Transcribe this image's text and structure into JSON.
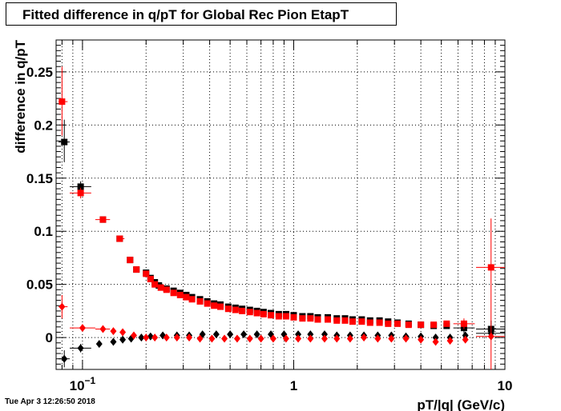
{
  "title": "Fitted difference in q/pT for Global Rec Pion EtapT",
  "timestamp": "Tue Apr  3 12:26:50 2018",
  "colors": {
    "series_black": "#000000",
    "series_red": "#ff0000",
    "grid": "#000000"
  },
  "chart_data": {
    "type": "scatter",
    "title": "Fitted difference in q/pT for Global Rec Pion EtapT",
    "xlabel": "pT/|q| (GeV/c)",
    "ylabel": "difference in q/pT",
    "x_scale": "log",
    "xlim": [
      0.075,
      10
    ],
    "ylim": [
      -0.03,
      0.28
    ],
    "grid": true,
    "x_ticks": [
      {
        "value": 0.1,
        "label": "10",
        "sup": "−1"
      },
      {
        "value": 1,
        "label": "1",
        "sup": ""
      },
      {
        "value": 10,
        "label": "10",
        "sup": ""
      }
    ],
    "y_ticks": [
      {
        "value": 0,
        "label": "0"
      },
      {
        "value": 0.05,
        "label": "0.05"
      },
      {
        "value": 0.1,
        "label": "0.1"
      },
      {
        "value": 0.15,
        "label": "0.15"
      },
      {
        "value": 0.2,
        "label": "0.2"
      },
      {
        "value": 0.25,
        "label": "0.25"
      }
    ],
    "series": [
      {
        "marker": "square",
        "color": "#000000",
        "points": [
          {
            "x": 0.082,
            "y": 0.184,
            "xlo": 0.077,
            "xhi": 0.087,
            "ylo": 0.165,
            "yhi": 0.205
          },
          {
            "x": 0.098,
            "y": 0.142,
            "xlo": 0.087,
            "xhi": 0.11,
            "ylo": 0.137,
            "yhi": 0.147
          },
          {
            "x": 0.125,
            "y": 0.111
          },
          {
            "x": 0.15,
            "y": 0.093
          },
          {
            "x": 0.168,
            "y": 0.073
          },
          {
            "x": 0.18,
            "y": 0.064
          },
          {
            "x": 0.2,
            "y": 0.061
          },
          {
            "x": 0.21,
            "y": 0.056
          },
          {
            "x": 0.22,
            "y": 0.052
          },
          {
            "x": 0.23,
            "y": 0.049
          },
          {
            "x": 0.25,
            "y": 0.046
          },
          {
            "x": 0.27,
            "y": 0.044
          },
          {
            "x": 0.29,
            "y": 0.042
          },
          {
            "x": 0.31,
            "y": 0.04
          },
          {
            "x": 0.33,
            "y": 0.038
          },
          {
            "x": 0.36,
            "y": 0.036
          },
          {
            "x": 0.39,
            "y": 0.034
          },
          {
            "x": 0.42,
            "y": 0.032
          },
          {
            "x": 0.45,
            "y": 0.031
          },
          {
            "x": 0.49,
            "y": 0.029
          },
          {
            "x": 0.53,
            "y": 0.028
          },
          {
            "x": 0.57,
            "y": 0.027
          },
          {
            "x": 0.62,
            "y": 0.026
          },
          {
            "x": 0.67,
            "y": 0.025
          },
          {
            "x": 0.72,
            "y": 0.024
          },
          {
            "x": 0.78,
            "y": 0.023
          },
          {
            "x": 0.85,
            "y": 0.022
          },
          {
            "x": 0.92,
            "y": 0.022
          },
          {
            "x": 1.0,
            "y": 0.021
          },
          {
            "x": 1.1,
            "y": 0.02
          },
          {
            "x": 1.2,
            "y": 0.02
          },
          {
            "x": 1.3,
            "y": 0.019
          },
          {
            "x": 1.45,
            "y": 0.019
          },
          {
            "x": 1.6,
            "y": 0.018
          },
          {
            "x": 1.75,
            "y": 0.018
          },
          {
            "x": 1.9,
            "y": 0.017
          },
          {
            "x": 2.1,
            "y": 0.017
          },
          {
            "x": 2.3,
            "y": 0.016
          },
          {
            "x": 2.55,
            "y": 0.016
          },
          {
            "x": 2.8,
            "y": 0.015
          },
          {
            "x": 3.1,
            "y": 0.014
          },
          {
            "x": 3.5,
            "y": 0.013
          },
          {
            "x": 4.0,
            "y": 0.012
          },
          {
            "x": 4.6,
            "y": 0.011
          },
          {
            "x": 5.3,
            "y": 0.011
          },
          {
            "x": 6.4,
            "y": 0.009,
            "xlo": 5.7,
            "xhi": 7.2,
            "ylo": 0.004,
            "yhi": 0.014
          },
          {
            "x": 8.6,
            "y": 0.008,
            "xlo": 7.3,
            "xhi": 10.0,
            "ylo": 0.0,
            "yhi": 0.016
          }
        ]
      },
      {
        "marker": "diamond",
        "color": "#000000",
        "points": [
          {
            "x": 0.082,
            "y": -0.02,
            "xlo": 0.077,
            "xhi": 0.087,
            "ylo": -0.028,
            "yhi": -0.012
          },
          {
            "x": 0.098,
            "y": -0.01,
            "xlo": 0.087,
            "xhi": 0.11,
            "ylo": -0.014,
            "yhi": -0.006
          },
          {
            "x": 0.12,
            "y": -0.006
          },
          {
            "x": 0.14,
            "y": -0.004
          },
          {
            "x": 0.155,
            "y": -0.002
          },
          {
            "x": 0.17,
            "y": -0.001
          },
          {
            "x": 0.19,
            "y": 0.0
          },
          {
            "x": 0.21,
            "y": 0.001
          },
          {
            "x": 0.24,
            "y": 0.002
          },
          {
            "x": 0.28,
            "y": 0.002
          },
          {
            "x": 0.32,
            "y": 0.002
          },
          {
            "x": 0.37,
            "y": 0.003
          },
          {
            "x": 0.43,
            "y": 0.003
          },
          {
            "x": 0.5,
            "y": 0.003
          },
          {
            "x": 0.58,
            "y": 0.003
          },
          {
            "x": 0.67,
            "y": 0.003
          },
          {
            "x": 0.78,
            "y": 0.003
          },
          {
            "x": 0.9,
            "y": 0.003
          },
          {
            "x": 1.05,
            "y": 0.003
          },
          {
            "x": 1.2,
            "y": 0.003
          },
          {
            "x": 1.4,
            "y": 0.003
          },
          {
            "x": 1.6,
            "y": 0.002
          },
          {
            "x": 1.85,
            "y": 0.002
          },
          {
            "x": 2.15,
            "y": 0.002
          },
          {
            "x": 2.5,
            "y": 0.002
          },
          {
            "x": 2.9,
            "y": 0.002
          },
          {
            "x": 3.4,
            "y": 0.001
          },
          {
            "x": 4.0,
            "y": 0.001
          },
          {
            "x": 4.7,
            "y": 0.0
          },
          {
            "x": 5.5,
            "y": 0.0
          },
          {
            "x": 6.5,
            "y": 0.002
          },
          {
            "x": 8.6,
            "y": 0.004,
            "xlo": 7.3,
            "xhi": 10.0
          }
        ]
      },
      {
        "marker": "square",
        "color": "#ff0000",
        "points": [
          {
            "x": 0.08,
            "y": 0.222,
            "xlo": 0.077,
            "xhi": 0.085,
            "ylo": 0.19,
            "yhi": 0.255
          },
          {
            "x": 0.098,
            "y": 0.136,
            "xlo": 0.087,
            "xhi": 0.11,
            "ylo": 0.131,
            "yhi": 0.141
          },
          {
            "x": 0.125,
            "y": 0.111,
            "xlo": 0.115,
            "xhi": 0.135
          },
          {
            "x": 0.15,
            "y": 0.093,
            "xlo": 0.145,
            "xhi": 0.158
          },
          {
            "x": 0.168,
            "y": 0.073
          },
          {
            "x": 0.18,
            "y": 0.064
          },
          {
            "x": 0.2,
            "y": 0.06
          },
          {
            "x": 0.21,
            "y": 0.055
          },
          {
            "x": 0.22,
            "y": 0.05
          },
          {
            "x": 0.235,
            "y": 0.047
          },
          {
            "x": 0.25,
            "y": 0.045
          },
          {
            "x": 0.27,
            "y": 0.042
          },
          {
            "x": 0.29,
            "y": 0.04
          },
          {
            "x": 0.31,
            "y": 0.038
          },
          {
            "x": 0.33,
            "y": 0.036
          },
          {
            "x": 0.36,
            "y": 0.034
          },
          {
            "x": 0.39,
            "y": 0.032
          },
          {
            "x": 0.42,
            "y": 0.03
          },
          {
            "x": 0.45,
            "y": 0.029
          },
          {
            "x": 0.49,
            "y": 0.027
          },
          {
            "x": 0.53,
            "y": 0.026
          },
          {
            "x": 0.57,
            "y": 0.025
          },
          {
            "x": 0.62,
            "y": 0.024
          },
          {
            "x": 0.67,
            "y": 0.023
          },
          {
            "x": 0.72,
            "y": 0.022
          },
          {
            "x": 0.78,
            "y": 0.021
          },
          {
            "x": 0.85,
            "y": 0.02
          },
          {
            "x": 0.92,
            "y": 0.02
          },
          {
            "x": 1.0,
            "y": 0.019
          },
          {
            "x": 1.1,
            "y": 0.018
          },
          {
            "x": 1.2,
            "y": 0.018
          },
          {
            "x": 1.3,
            "y": 0.017
          },
          {
            "x": 1.45,
            "y": 0.017
          },
          {
            "x": 1.6,
            "y": 0.016
          },
          {
            "x": 1.75,
            "y": 0.016
          },
          {
            "x": 1.9,
            "y": 0.015
          },
          {
            "x": 2.1,
            "y": 0.015
          },
          {
            "x": 2.3,
            "y": 0.014
          },
          {
            "x": 2.55,
            "y": 0.014
          },
          {
            "x": 2.8,
            "y": 0.013
          },
          {
            "x": 3.1,
            "y": 0.013
          },
          {
            "x": 3.5,
            "y": 0.012
          },
          {
            "x": 4.0,
            "y": 0.012
          },
          {
            "x": 4.6,
            "y": 0.012
          },
          {
            "x": 5.3,
            "y": 0.013
          },
          {
            "x": 6.4,
            "y": 0.013,
            "xlo": 5.7,
            "xhi": 7.2,
            "ylo": 0.008,
            "yhi": 0.018
          },
          {
            "x": 8.6,
            "y": 0.066,
            "xlo": 7.3,
            "xhi": 10.0,
            "ylo": -0.03,
            "yhi": 0.112
          }
        ]
      },
      {
        "marker": "diamond",
        "color": "#ff0000",
        "points": [
          {
            "x": 0.08,
            "y": 0.029,
            "xlo": 0.077,
            "xhi": 0.085,
            "ylo": 0.018,
            "yhi": 0.04
          },
          {
            "x": 0.1,
            "y": 0.009,
            "xlo": 0.087,
            "xhi": 0.115,
            "ylo": 0.006,
            "yhi": 0.012
          },
          {
            "x": 0.125,
            "y": 0.008,
            "xlo": 0.115,
            "xhi": 0.135
          },
          {
            "x": 0.14,
            "y": 0.006
          },
          {
            "x": 0.155,
            "y": 0.005
          },
          {
            "x": 0.175,
            "y": 0.002
          },
          {
            "x": 0.2,
            "y": 0.0
          },
          {
            "x": 0.22,
            "y": 0.0
          },
          {
            "x": 0.25,
            "y": 0.0
          },
          {
            "x": 0.28,
            "y": 0.0
          },
          {
            "x": 0.32,
            "y": 0.0
          },
          {
            "x": 0.36,
            "y": -0.001
          },
          {
            "x": 0.41,
            "y": -0.001
          },
          {
            "x": 0.47,
            "y": -0.001
          },
          {
            "x": 0.54,
            "y": -0.001
          },
          {
            "x": 0.62,
            "y": -0.001
          },
          {
            "x": 0.7,
            "y": -0.001
          },
          {
            "x": 0.8,
            "y": -0.001
          },
          {
            "x": 0.92,
            "y": -0.001
          },
          {
            "x": 1.05,
            "y": -0.001
          },
          {
            "x": 1.2,
            "y": -0.001
          },
          {
            "x": 1.4,
            "y": -0.001
          },
          {
            "x": 1.6,
            "y": -0.001
          },
          {
            "x": 1.85,
            "y": -0.001
          },
          {
            "x": 2.15,
            "y": 0.0
          },
          {
            "x": 2.5,
            "y": -0.001
          },
          {
            "x": 2.9,
            "y": -0.001
          },
          {
            "x": 3.4,
            "y": -0.001
          },
          {
            "x": 4.0,
            "y": -0.002
          },
          {
            "x": 4.7,
            "y": -0.004
          },
          {
            "x": 5.5,
            "y": -0.003
          },
          {
            "x": 6.5,
            "y": -0.002
          },
          {
            "x": 8.6,
            "y": 0.001,
            "xlo": 7.3,
            "xhi": 10.0
          }
        ]
      }
    ]
  }
}
